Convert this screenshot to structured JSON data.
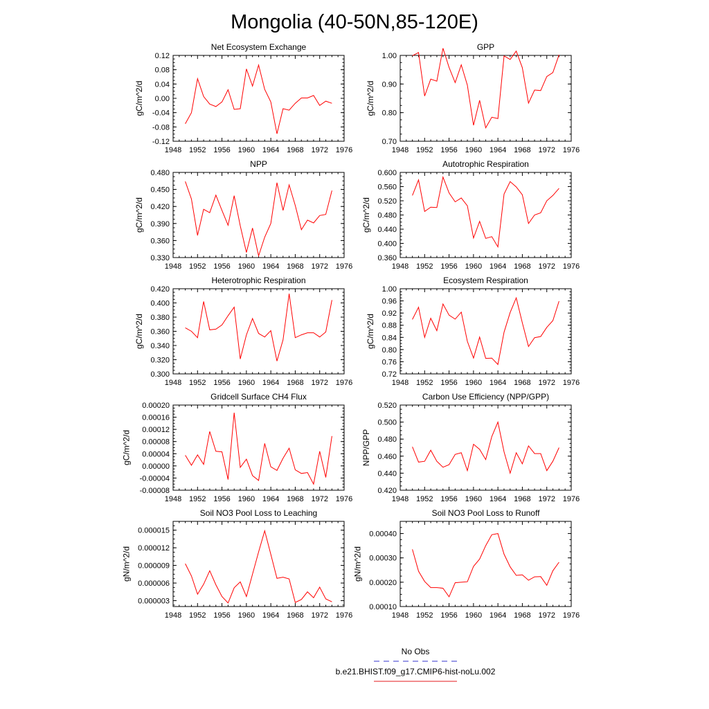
{
  "figure": {
    "title": "Mongolia (40-50N,85-120E)"
  },
  "legend": [
    {
      "label": "No Obs",
      "color": "#3333cc",
      "dash": true
    },
    {
      "label": "b.e21.BHIST.f09_g17.CMIP6-hist-noLu.002",
      "color": "#e41a1c",
      "dash": false
    }
  ],
  "colors": {
    "series": "#ff0000",
    "obs": "#3333cc"
  },
  "chart_data": [
    {
      "type": "line",
      "title": "Net Ecosystem Exchange",
      "ylabel": "gC/m^2/d",
      "xlim": [
        1948,
        1976
      ],
      "ylim": [
        -0.12,
        0.12
      ],
      "xticks": [
        "1948",
        "1952",
        "1956",
        "1960",
        "1964",
        "1968",
        "1972",
        "1976"
      ],
      "yticks": [
        "-0.12",
        "-0.08",
        "-0.04",
        "0.00",
        "0.04",
        "0.08",
        "0.12"
      ],
      "series": [
        {
          "x": [
            1950,
            1951,
            1952,
            1953,
            1954,
            1955,
            1956,
            1957,
            1958,
            1959,
            1960,
            1961,
            1962,
            1963,
            1964,
            1965,
            1966,
            1967,
            1968,
            1969,
            1970,
            1971,
            1972,
            1973,
            1974
          ],
          "y": [
            -0.071,
            -0.04,
            0.055,
            0.005,
            -0.016,
            -0.023,
            -0.01,
            0.024,
            -0.031,
            -0.029,
            0.082,
            0.034,
            0.093,
            0.025,
            -0.01,
            -0.099,
            -0.029,
            -0.033,
            -0.014,
            0.001,
            0.001,
            0.008,
            -0.02,
            -0.008,
            -0.014
          ]
        }
      ]
    },
    {
      "type": "line",
      "title": "GPP",
      "ylabel": "gC/m^2/d",
      "xlim": [
        1948,
        1976
      ],
      "ylim": [
        0.7,
        1.0
      ],
      "xticks": [
        "1948",
        "1952",
        "1956",
        "1960",
        "1964",
        "1968",
        "1972",
        "1976"
      ],
      "yticks": [
        "0.70",
        "0.80",
        "0.90",
        "1.00"
      ],
      "series": [
        {
          "x": [
            1950,
            1951,
            1952,
            1953,
            1954,
            1955,
            1956,
            1957,
            1958,
            1959,
            1960,
            1961,
            1962,
            1963,
            1964,
            1965,
            1966,
            1967,
            1968,
            1969,
            1970,
            1971,
            1972,
            1973,
            1974
          ],
          "y": [
            0.999,
            1.01,
            0.858,
            0.917,
            0.91,
            1.025,
            0.958,
            0.905,
            0.967,
            0.896,
            0.756,
            0.843,
            0.747,
            0.784,
            0.779,
            0.998,
            0.986,
            1.015,
            0.957,
            0.833,
            0.879,
            0.877,
            0.926,
            0.94,
            1.002
          ]
        }
      ]
    },
    {
      "type": "line",
      "title": "NPP",
      "ylabel": "gC/m^2/d",
      "xlim": [
        1948,
        1976
      ],
      "ylim": [
        0.33,
        0.48
      ],
      "xticks": [
        "1948",
        "1952",
        "1956",
        "1960",
        "1964",
        "1968",
        "1972",
        "1976"
      ],
      "yticks": [
        "0.330",
        "0.360",
        "0.390",
        "0.420",
        "0.450",
        "0.480"
      ],
      "series": [
        {
          "x": [
            1950,
            1951,
            1952,
            1953,
            1954,
            1955,
            1956,
            1957,
            1958,
            1959,
            1960,
            1961,
            1962,
            1963,
            1964,
            1965,
            1966,
            1967,
            1968,
            1969,
            1970,
            1971,
            1972,
            1973,
            1974
          ],
          "y": [
            0.464,
            0.433,
            0.369,
            0.415,
            0.409,
            0.44,
            0.413,
            0.387,
            0.439,
            0.386,
            0.339,
            0.382,
            0.333,
            0.366,
            0.39,
            0.462,
            0.413,
            0.458,
            0.422,
            0.379,
            0.396,
            0.391,
            0.404,
            0.406,
            0.448
          ]
        }
      ]
    },
    {
      "type": "line",
      "title": "Autotrophic Respiration",
      "ylabel": "gC/m^2/d",
      "xlim": [
        1948,
        1976
      ],
      "ylim": [
        0.36,
        0.6
      ],
      "xticks": [
        "1948",
        "1952",
        "1956",
        "1960",
        "1964",
        "1968",
        "1972",
        "1976"
      ],
      "yticks": [
        "0.360",
        "0.400",
        "0.440",
        "0.480",
        "0.520",
        "0.560",
        "0.600"
      ],
      "series": [
        {
          "x": [
            1950,
            1951,
            1952,
            1953,
            1954,
            1955,
            1956,
            1957,
            1958,
            1959,
            1960,
            1961,
            1962,
            1963,
            1964,
            1965,
            1966,
            1967,
            1968,
            1969,
            1970,
            1971,
            1972,
            1973,
            1974
          ],
          "y": [
            0.535,
            0.579,
            0.49,
            0.502,
            0.501,
            0.587,
            0.542,
            0.517,
            0.528,
            0.506,
            0.415,
            0.462,
            0.414,
            0.419,
            0.39,
            0.539,
            0.574,
            0.559,
            0.537,
            0.456,
            0.48,
            0.486,
            0.52,
            0.535,
            0.555
          ]
        }
      ]
    },
    {
      "type": "line",
      "title": "Heterotrophic Respiration",
      "ylabel": "gC/m^2/d",
      "xlim": [
        1948,
        1976
      ],
      "ylim": [
        0.3,
        0.42
      ],
      "xticks": [
        "1948",
        "1952",
        "1956",
        "1960",
        "1964",
        "1968",
        "1972",
        "1976"
      ],
      "yticks": [
        "0.300",
        "0.320",
        "0.340",
        "0.360",
        "0.380",
        "0.400",
        "0.420"
      ],
      "series": [
        {
          "x": [
            1950,
            1951,
            1952,
            1953,
            1954,
            1955,
            1956,
            1957,
            1958,
            1959,
            1960,
            1961,
            1962,
            1963,
            1964,
            1965,
            1966,
            1967,
            1968,
            1969,
            1970,
            1971,
            1972,
            1973,
            1974
          ],
          "y": [
            0.365,
            0.36,
            0.351,
            0.402,
            0.362,
            0.363,
            0.369,
            0.382,
            0.394,
            0.321,
            0.355,
            0.378,
            0.357,
            0.352,
            0.361,
            0.318,
            0.348,
            0.413,
            0.351,
            0.355,
            0.358,
            0.358,
            0.352,
            0.359,
            0.404
          ]
        }
      ]
    },
    {
      "type": "line",
      "title": "Ecosystem Respiration",
      "ylabel": "gC/m^2/d",
      "xlim": [
        1948,
        1976
      ],
      "ylim": [
        0.72,
        1.0
      ],
      "xticks": [
        "1948",
        "1952",
        "1956",
        "1960",
        "1964",
        "1968",
        "1972",
        "1976"
      ],
      "yticks": [
        "0.72",
        "0.76",
        "0.80",
        "0.84",
        "0.88",
        "0.92",
        "0.96",
        "1.00"
      ],
      "series": [
        {
          "x": [
            1950,
            1951,
            1952,
            1953,
            1954,
            1955,
            1956,
            1957,
            1958,
            1959,
            1960,
            1961,
            1962,
            1963,
            1964,
            1965,
            1966,
            1967,
            1968,
            1969,
            1970,
            1971,
            1972,
            1973,
            1974
          ],
          "y": [
            0.899,
            0.939,
            0.84,
            0.903,
            0.862,
            0.95,
            0.913,
            0.9,
            0.923,
            0.827,
            0.772,
            0.841,
            0.771,
            0.772,
            0.751,
            0.857,
            0.922,
            0.97,
            0.888,
            0.81,
            0.839,
            0.843,
            0.873,
            0.895,
            0.959
          ]
        }
      ]
    },
    {
      "type": "line",
      "title": "Gridcell Surface CH4 Flux",
      "ylabel": "gC/m^2/d",
      "xlim": [
        1948,
        1976
      ],
      "ylim": [
        -8e-05,
        0.0002
      ],
      "xticks": [
        "1948",
        "1952",
        "1956",
        "1960",
        "1964",
        "1968",
        "1972",
        "1976"
      ],
      "yticks": [
        "-0.00008",
        "-0.00004",
        "0.00000",
        "0.00004",
        "0.00008",
        "0.00012",
        "0.00016",
        "0.00020"
      ],
      "series": [
        {
          "x": [
            1950,
            1951,
            1952,
            1953,
            1954,
            1955,
            1956,
            1957,
            1958,
            1959,
            1960,
            1961,
            1962,
            1963,
            1964,
            1965,
            1966,
            1967,
            1968,
            1969,
            1970,
            1971,
            1972,
            1973,
            1974
          ],
          "y": [
            3.5e-05,
            2e-06,
            3.6e-05,
            5e-06,
            0.000113,
            4.8e-05,
            4.6e-05,
            -4.5e-05,
            0.000175,
            -5e-06,
            2.2e-05,
            -3.2e-05,
            -4.8e-05,
            7.4e-05,
            -3e-06,
            -1.5e-05,
            2.5e-05,
            5.8e-05,
            -1.3e-05,
            -2.5e-05,
            -2.2e-05,
            -6e-05,
            4.8e-05,
            -3.8e-05,
            9.8e-05
          ]
        }
      ]
    },
    {
      "type": "line",
      "title": "Carbon Use Efficiency (NPP/GPP)",
      "ylabel": "NPP/GPP",
      "xlim": [
        1948,
        1976
      ],
      "ylim": [
        0.42,
        0.52
      ],
      "xticks": [
        "1948",
        "1952",
        "1956",
        "1960",
        "1964",
        "1968",
        "1972",
        "1976"
      ],
      "yticks": [
        "0.420",
        "0.440",
        "0.460",
        "0.480",
        "0.500",
        "0.520"
      ],
      "series": [
        {
          "x": [
            1950,
            1951,
            1952,
            1953,
            1954,
            1955,
            1956,
            1957,
            1958,
            1959,
            1960,
            1961,
            1962,
            1963,
            1964,
            1965,
            1966,
            1967,
            1968,
            1969,
            1970,
            1971,
            1972,
            1973,
            1974
          ],
          "y": [
            0.471,
            0.453,
            0.454,
            0.467,
            0.454,
            0.447,
            0.45,
            0.462,
            0.464,
            0.443,
            0.474,
            0.468,
            0.456,
            0.483,
            0.5,
            0.465,
            0.44,
            0.464,
            0.451,
            0.472,
            0.463,
            0.463,
            0.443,
            0.454,
            0.47
          ]
        }
      ]
    },
    {
      "type": "line",
      "title": "Soil NO3 Pool Loss to Leaching",
      "ylabel": "gN/m^2/d",
      "xlim": [
        1948,
        1976
      ],
      "ylim": [
        2e-06,
        1.65e-05
      ],
      "xticks": [
        "1948",
        "1952",
        "1956",
        "1960",
        "1964",
        "1968",
        "1972",
        "1976"
      ],
      "yticks": [
        "0.000003",
        "0.000006",
        "0.000009",
        "0.000012",
        "0.000015"
      ],
      "series": [
        {
          "x": [
            1950,
            1951,
            1952,
            1953,
            1954,
            1955,
            1956,
            1957,
            1958,
            1959,
            1960,
            1961,
            1962,
            1963,
            1964,
            1965,
            1966,
            1967,
            1968,
            1969,
            1970,
            1971,
            1972,
            1973,
            1974
          ],
          "y": [
            9.3e-06,
            7.2e-06,
            4.1e-06,
            5.8e-06,
            8.1e-06,
            5.7e-06,
            3.7e-06,
            2.6e-06,
            5.2e-06,
            6.2e-06,
            3.7e-06,
            7.5e-06,
            1.13e-05,
            1.49e-05,
            1.09e-05,
            6.8e-06,
            7e-06,
            6.7e-06,
            2.7e-06,
            3.2e-06,
            4.5e-06,
            3.5e-06,
            5.3e-06,
            3.3e-06,
            2.8e-06
          ]
        }
      ]
    },
    {
      "type": "line",
      "title": "Soil NO3 Pool Loss to Runoff",
      "ylabel": "gN/m^2/d",
      "xlim": [
        1948,
        1976
      ],
      "ylim": [
        0.0001,
        0.00045
      ],
      "xticks": [
        "1948",
        "1952",
        "1956",
        "1960",
        "1964",
        "1968",
        "1972",
        "1976"
      ],
      "yticks": [
        "0.00010",
        "0.00020",
        "0.00030",
        "0.00040"
      ],
      "series": [
        {
          "x": [
            1950,
            1951,
            1952,
            1953,
            1954,
            1955,
            1956,
            1957,
            1958,
            1959,
            1960,
            1961,
            1962,
            1963,
            1964,
            1965,
            1966,
            1967,
            1968,
            1969,
            1970,
            1971,
            1972,
            1973,
            1974
          ],
          "y": [
            0.000335,
            0.000245,
            0.000203,
            0.000178,
            0.000178,
            0.000175,
            0.00014,
            0.000198,
            0.0002,
            0.000202,
            0.000265,
            0.000295,
            0.00035,
            0.000395,
            0.0004,
            0.000315,
            0.000263,
            0.000228,
            0.00023,
            0.000208,
            0.000222,
            0.000223,
            0.000187,
            0.000247,
            0.000282
          ]
        }
      ]
    }
  ]
}
